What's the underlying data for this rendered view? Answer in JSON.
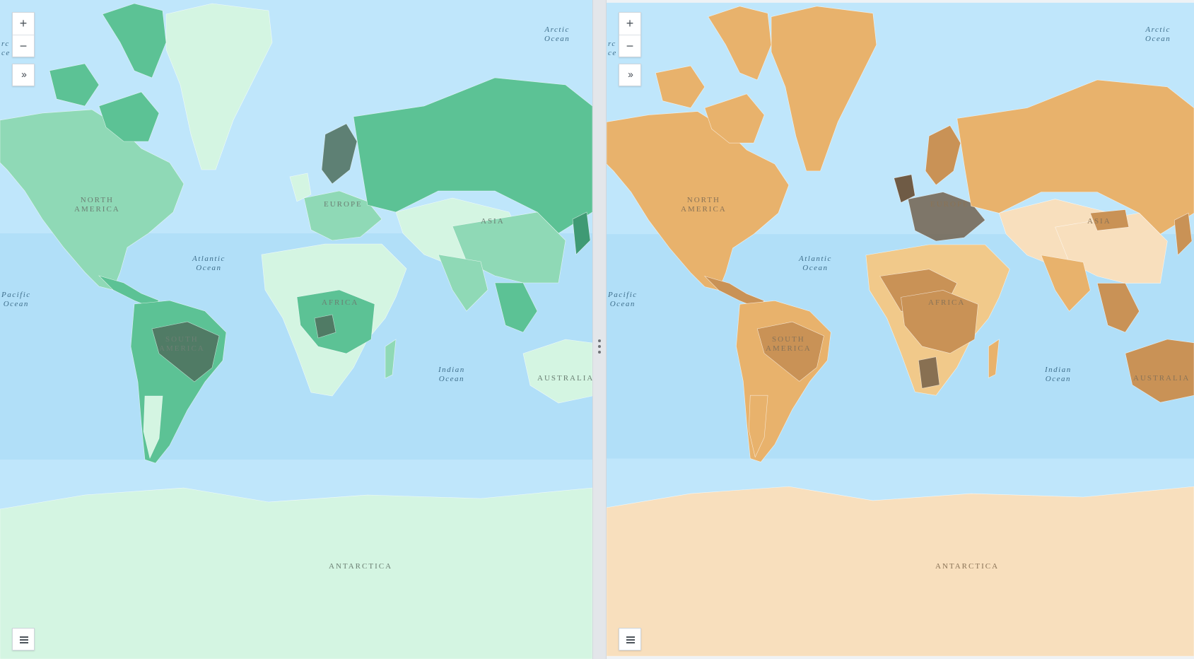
{
  "layout_name": "swipe-compare",
  "panes": [
    {
      "id": "left",
      "theme": "green",
      "colors": {
        "ocean": "#bfe6fb",
        "ocean_deep": "#a9dbf7",
        "land_light": "#d4f5e2",
        "land_mid": "#8fd9b6",
        "land_strong": "#5cc295",
        "land_dark": "#3f9a74",
        "land_darkest": "#4e6f5d"
      }
    },
    {
      "id": "right",
      "theme": "tan",
      "colors": {
        "ocean": "#bfe6fb",
        "ocean_deep": "#a9dbf7",
        "land_light": "#f8dfbd",
        "land_mid": "#f1c98a",
        "land_strong": "#e8b26c",
        "land_dark": "#c99256",
        "land_darkest": "#6f5b45"
      }
    }
  ],
  "controls": {
    "zoom_in": "+",
    "zoom_out": "−",
    "expand": "››",
    "legend_icon": "list-icon"
  },
  "labels": {
    "arctic": "Arctic\nOcean",
    "north_america": "NORTH\nAMERICA",
    "atlantic": "Atlantic\nOcean",
    "pacific": "Pacific\nOcean",
    "europe": "EUROPE",
    "asia": "ASIA",
    "africa": "AFRICA",
    "south_america": "SOUTH\nAMERICA",
    "indian": "Indian\nOcean",
    "australia": "AUSTRALIA",
    "antarctica": "ANTARCTICA",
    "pacific_cut": "rc\nce"
  }
}
